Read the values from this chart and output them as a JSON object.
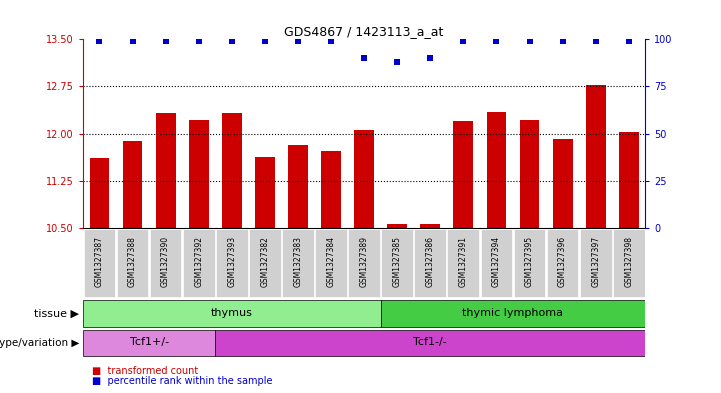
{
  "title": "GDS4867 / 1423113_a_at",
  "samples": [
    "GSM1327387",
    "GSM1327388",
    "GSM1327390",
    "GSM1327392",
    "GSM1327393",
    "GSM1327382",
    "GSM1327383",
    "GSM1327384",
    "GSM1327389",
    "GSM1327385",
    "GSM1327386",
    "GSM1327391",
    "GSM1327394",
    "GSM1327395",
    "GSM1327396",
    "GSM1327397",
    "GSM1327398"
  ],
  "bar_values": [
    11.62,
    11.88,
    12.32,
    12.22,
    12.32,
    11.63,
    11.82,
    11.72,
    12.05,
    10.57,
    10.57,
    12.2,
    12.34,
    12.22,
    11.92,
    12.78,
    12.03
  ],
  "percentile_values": [
    99,
    99,
    99,
    99,
    99,
    99,
    99,
    99,
    90,
    88,
    90,
    99,
    99,
    99,
    99,
    99,
    99
  ],
  "ylim_left": [
    10.5,
    13.5
  ],
  "ylim_right": [
    0,
    100
  ],
  "yticks_left": [
    10.5,
    11.25,
    12.0,
    12.75,
    13.5
  ],
  "yticks_right": [
    0,
    25,
    50,
    75,
    100
  ],
  "dotted_lines": [
    11.25,
    12.0,
    12.75
  ],
  "bar_color": "#cc0000",
  "dot_color": "#0000cc",
  "tissue_groups": [
    {
      "label": "thymus",
      "start": 0,
      "end": 9,
      "color": "#90ee90"
    },
    {
      "label": "thymic lymphoma",
      "start": 9,
      "end": 17,
      "color": "#44cc44"
    }
  ],
  "genotype_groups": [
    {
      "label": "Tcf1+/-",
      "start": 0,
      "end": 4,
      "color": "#dd88dd"
    },
    {
      "label": "Tcf1-/-",
      "start": 4,
      "end": 17,
      "color": "#cc44cc"
    }
  ],
  "legend_items": [
    {
      "color": "#cc0000",
      "label": "transformed count"
    },
    {
      "color": "#0000cc",
      "label": "percentile rank within the sample"
    }
  ],
  "row_labels": [
    "tissue",
    "genotype/variation"
  ],
  "background_color": "#ffffff",
  "bar_width": 0.6,
  "left_axis_color": "#cc0000",
  "right_axis_color": "#0000cc",
  "sample_box_color": "#d0d0d0"
}
